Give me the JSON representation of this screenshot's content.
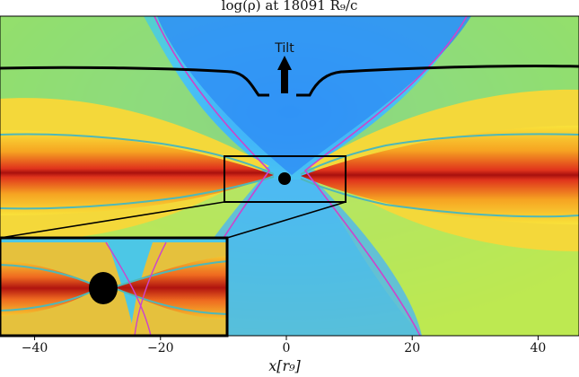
{
  "figure": {
    "title": "log(ρ) at 18091 R_g/c",
    "title_display": "log(ρ) at 18091 R₉/c",
    "annotation": "Tilt",
    "xlabel": "x[r_g]",
    "xlabel_display": "x[r₉]",
    "colormap": "jet",
    "contour_colors": {
      "outer": "#cc44cc",
      "disk": "#4fb8b8",
      "tilt": "#000000"
    }
  },
  "chart_data": {
    "type": "heatmap",
    "title": "log(ρ) at 18091 R_g/c",
    "xlabel": "x[r_g]",
    "xlim": [
      -45.5,
      46.5
    ],
    "xticks": [
      -40,
      -20,
      0,
      20,
      40
    ],
    "xtick_labels": [
      "−40",
      "−20",
      "0",
      "20",
      "40"
    ],
    "inset_region_x": [
      -10,
      10
    ]
  }
}
